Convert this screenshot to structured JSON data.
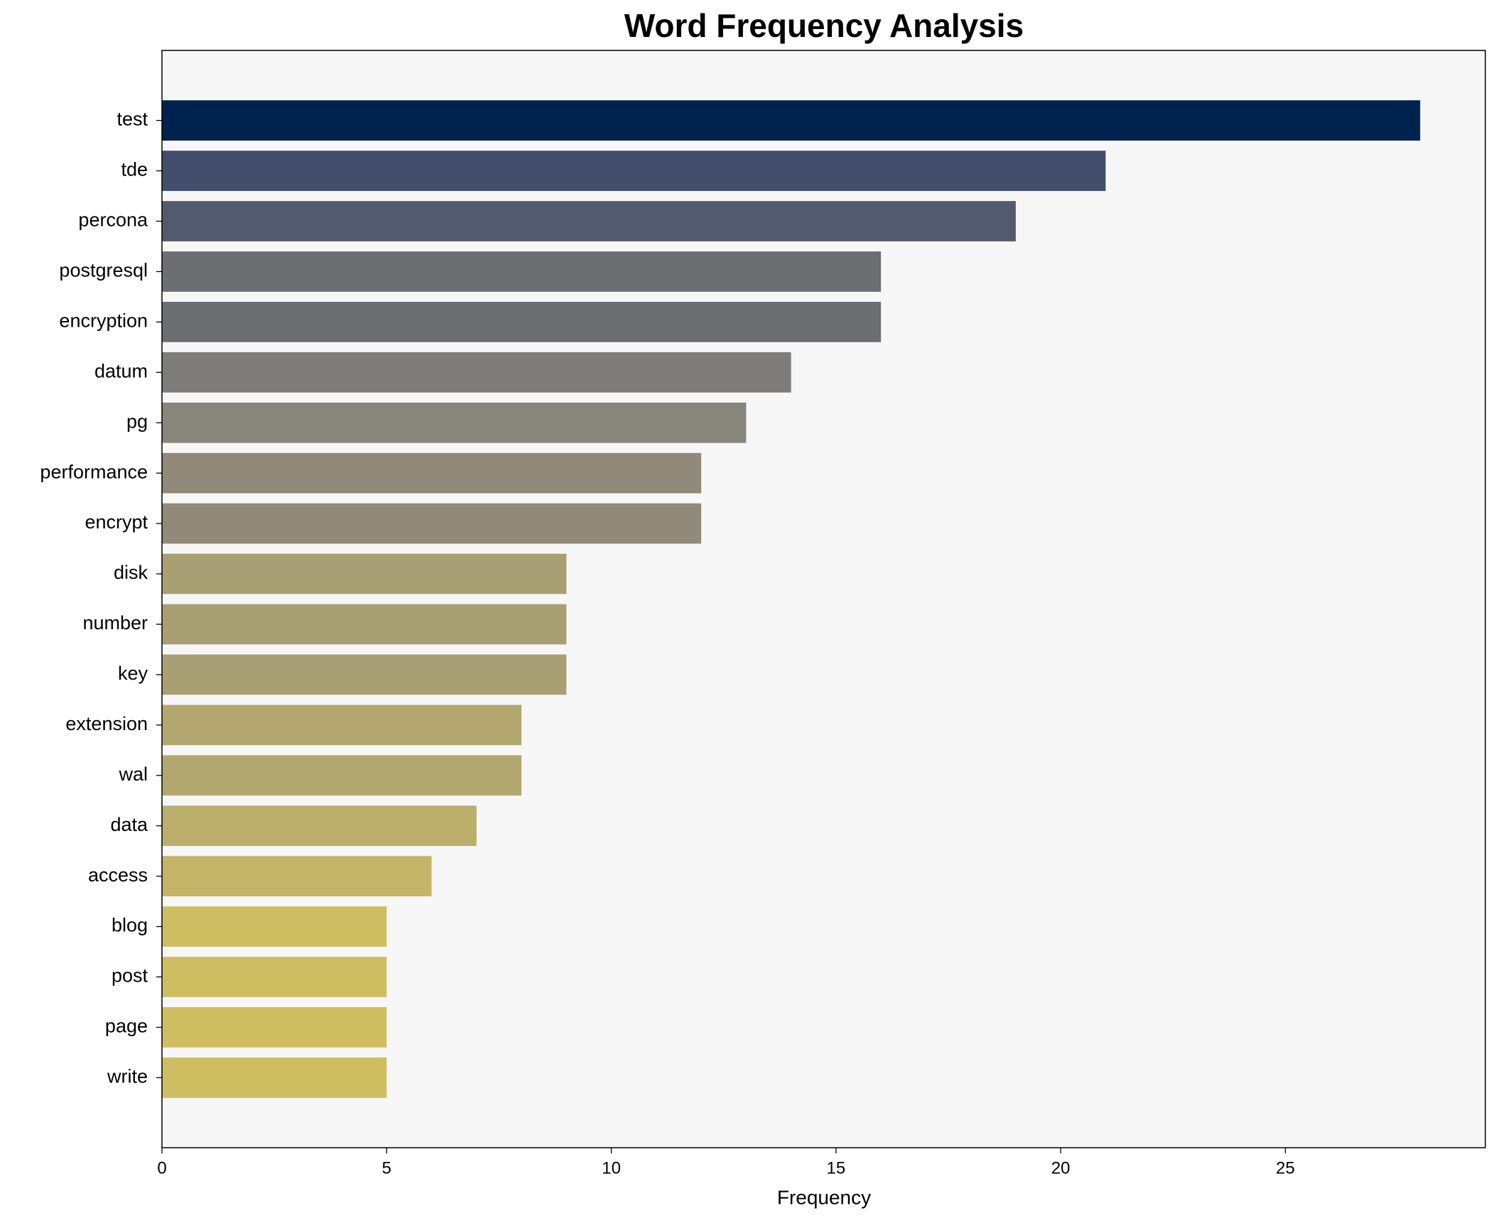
{
  "chart_data": {
    "type": "barh",
    "title": "Word Frequency Analysis",
    "x_label": "Frequency",
    "categories": [
      "test",
      "tde",
      "percona",
      "postgresql",
      "encryption",
      "datum",
      "pg",
      "performance",
      "encrypt",
      "disk",
      "number",
      "key",
      "extension",
      "wal",
      "data",
      "access",
      "blog",
      "post",
      "page",
      "write"
    ],
    "values": [
      28,
      21,
      19,
      16,
      16,
      14,
      13,
      12,
      12,
      9,
      9,
      9,
      8,
      8,
      7,
      6,
      5,
      5,
      5,
      5
    ],
    "colors": [
      "#00224e",
      "#424e6b",
      "#535a6e",
      "#6c6e72",
      "#6c6e72",
      "#7d7c78",
      "#88857a",
      "#918a78",
      "#918a78",
      "#a8a074",
      "#a8a074",
      "#a8a074",
      "#b2a86f",
      "#b2a86f",
      "#bcae6b",
      "#c3b468",
      "#cebe61",
      "#cebe61",
      "#cebe61",
      "#cebe61"
    ],
    "xlim": [
      0,
      29.45
    ],
    "xticks": [
      0,
      5,
      10,
      15,
      20,
      25
    ],
    "plot_background": "#f7f7f7"
  }
}
